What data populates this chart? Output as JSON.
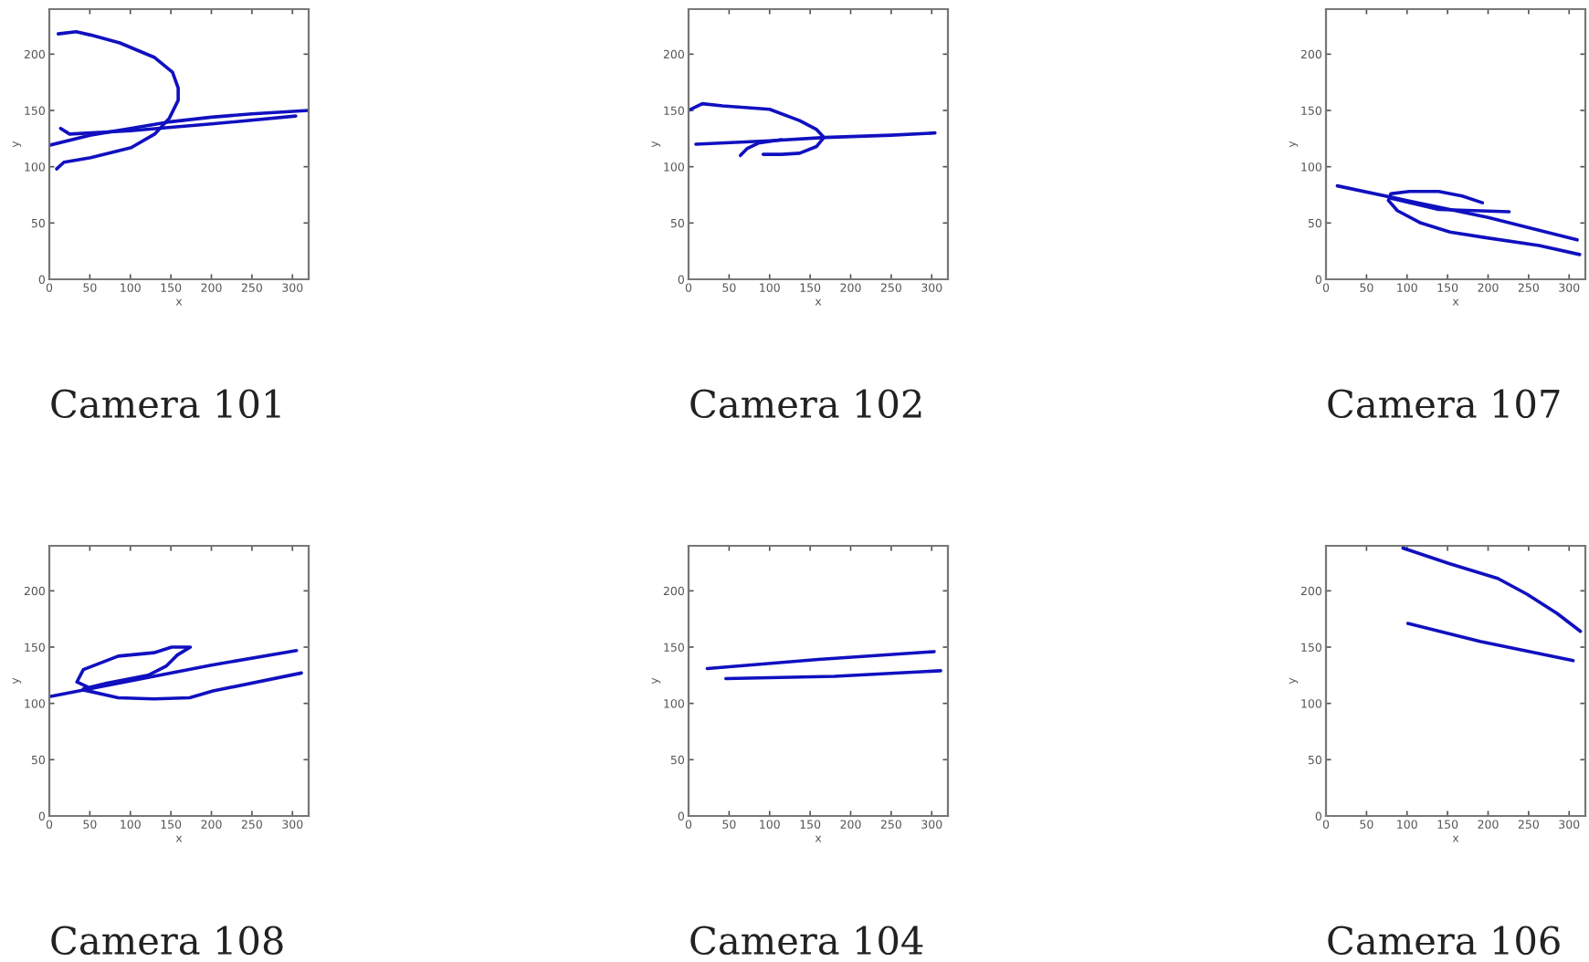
{
  "chart_data": [
    {
      "type": "line",
      "title": "Camera 101",
      "xlabel": "x",
      "ylabel": "y",
      "xlim": [
        0,
        320
      ],
      "ylim": [
        0,
        240
      ],
      "xticks": [
        0,
        50,
        100,
        150,
        200,
        250,
        300
      ],
      "yticks": [
        0,
        50,
        100,
        150,
        200
      ],
      "series": [
        {
          "color": "#1010c0",
          "x": [
            0,
            50,
            100,
            150,
            200,
            250,
            320
          ],
          "values": [
            119,
            128,
            134,
            140,
            144,
            147,
            150
          ]
        },
        {
          "color": "#1010c0",
          "x": [
            9,
            18,
            51,
            101,
            130,
            148,
            159,
            159,
            152,
            130,
            87,
            51,
            33,
            11
          ],
          "values": [
            98,
            104,
            108,
            117,
            129,
            143,
            159,
            170,
            184,
            197,
            210,
            217,
            220,
            218
          ]
        },
        {
          "color": "#1010c0",
          "x": [
            14,
            25,
            100,
            200,
            304
          ],
          "values": [
            134,
            129,
            132,
            138,
            145
          ]
        }
      ]
    },
    {
      "type": "line",
      "title": "Camera 102",
      "xlabel": "x",
      "ylabel": "y",
      "xlim": [
        0,
        320
      ],
      "ylim": [
        0,
        240
      ],
      "xticks": [
        0,
        50,
        100,
        150,
        200,
        250,
        300
      ],
      "yticks": [
        0,
        50,
        100,
        150,
        200
      ],
      "series": [
        {
          "color": "#1010c0",
          "x": [
            9,
            100,
            168,
            250,
            304
          ],
          "values": [
            120,
            123,
            126,
            128,
            130
          ]
        },
        {
          "color": "#1010c0",
          "x": [
            0,
            17,
            42,
            100,
            137,
            158,
            167,
            158,
            137,
            115,
            92
          ],
          "values": [
            150,
            156,
            154,
            151,
            141,
            133,
            126,
            118,
            112,
            111,
            111
          ]
        },
        {
          "color": "#1010c0",
          "x": [
            64,
            72,
            86,
            115
          ],
          "values": [
            110,
            116,
            121,
            124
          ]
        }
      ]
    },
    {
      "type": "line",
      "title": "Camera 107",
      "xlabel": "x",
      "ylabel": "y",
      "xlim": [
        0,
        320
      ],
      "ylim": [
        0,
        240
      ],
      "xticks": [
        0,
        50,
        100,
        150,
        200,
        250,
        300
      ],
      "yticks": [
        0,
        50,
        100,
        150,
        200
      ],
      "series": [
        {
          "color": "#1010c0",
          "x": [
            14,
            100,
            200,
            310
          ],
          "values": [
            83,
            70,
            55,
            35
          ]
        },
        {
          "color": "#1010c0",
          "x": [
            193,
            168,
            139,
            103,
            80,
            77,
            88,
            117,
            153,
            197,
            263,
            313
          ],
          "values": [
            68,
            74,
            78,
            78,
            76,
            70,
            61,
            50,
            42,
            37,
            30,
            22
          ]
        },
        {
          "color": "#1010c0",
          "x": [
            80,
            139,
            226
          ],
          "values": [
            72,
            62,
            60
          ]
        }
      ]
    },
    {
      "type": "line",
      "title": "Camera 108",
      "xlabel": "x",
      "ylabel": "y",
      "xlim": [
        0,
        320
      ],
      "ylim": [
        0,
        240
      ],
      "xticks": [
        0,
        50,
        100,
        150,
        200,
        250,
        300
      ],
      "yticks": [
        0,
        50,
        100,
        150,
        200
      ],
      "series": [
        {
          "color": "#1010c0",
          "x": [
            0,
            100,
            200,
            305
          ],
          "values": [
            106,
            120,
            134,
            147
          ]
        },
        {
          "color": "#1010c0",
          "x": [
            42,
            85,
            129,
            173,
            202,
            311
          ],
          "values": [
            112,
            105,
            104,
            105,
            111,
            127
          ]
        },
        {
          "color": "#1010c0",
          "x": [
            49,
            34,
            42,
            85,
            129,
            151,
            174,
            158,
            144,
            122,
            71,
            42
          ],
          "values": [
            114,
            119,
            130,
            142,
            145,
            150,
            150,
            143,
            133,
            125,
            118,
            113
          ]
        }
      ]
    },
    {
      "type": "line",
      "title": "Camera 104",
      "xlabel": "x",
      "ylabel": "y",
      "xlim": [
        0,
        320
      ],
      "ylim": [
        0,
        240
      ],
      "xticks": [
        0,
        50,
        100,
        150,
        200,
        250,
        300
      ],
      "yticks": [
        0,
        50,
        100,
        150,
        200
      ],
      "series": [
        {
          "color": "#1010c0",
          "x": [
            23,
            160,
            303
          ],
          "values": [
            131,
            139,
            146
          ]
        },
        {
          "color": "#1010c0",
          "x": [
            46,
            180,
            311
          ],
          "values": [
            122,
            124,
            129
          ]
        }
      ]
    },
    {
      "type": "line",
      "title": "Camera 106",
      "xlabel": "x",
      "ylabel": "y",
      "xlim": [
        0,
        320
      ],
      "ylim": [
        0,
        240
      ],
      "xticks": [
        0,
        50,
        100,
        150,
        200,
        250,
        300
      ],
      "yticks": [
        0,
        50,
        100,
        150,
        200
      ],
      "series": [
        {
          "color": "#1010c0",
          "x": [
            95,
            153,
            212,
            248,
            285,
            314
          ],
          "values": [
            238,
            224,
            211,
            197,
            180,
            164
          ]
        },
        {
          "color": "#1010c0",
          "x": [
            101,
            190,
            305
          ],
          "values": [
            171,
            155,
            138
          ]
        }
      ]
    }
  ]
}
